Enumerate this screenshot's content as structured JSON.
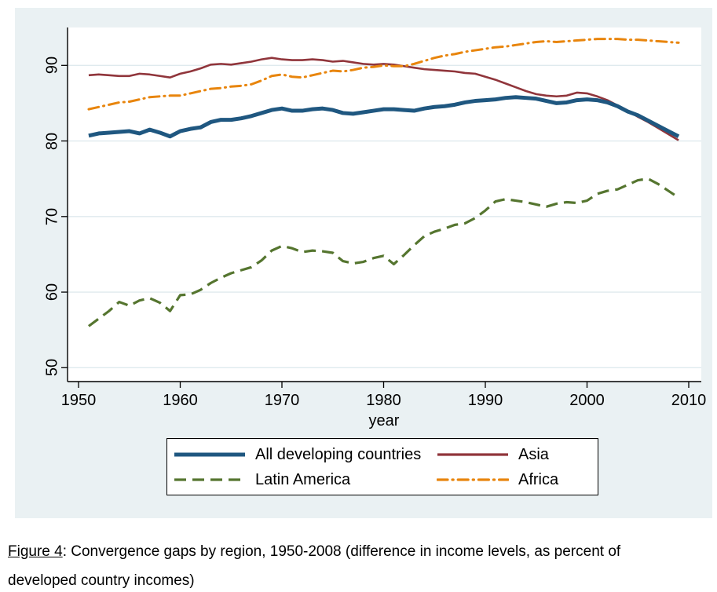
{
  "figure": {
    "caption_prefix": "Figure 4",
    "caption_rest": ": Convergence gaps by region, 1950-2008 (difference in income levels, as percent of developed country incomes)"
  },
  "chart_data": {
    "type": "line",
    "title": "",
    "xlabel": "year",
    "ylabel": "",
    "x_ticks": [
      1950,
      1960,
      1970,
      1980,
      1990,
      2000,
      2010
    ],
    "y_ticks": [
      50,
      60,
      70,
      80,
      90
    ],
    "xlim": [
      1948.9,
      2011.2
    ],
    "ylim": [
      48.2,
      95.0
    ],
    "grid": true,
    "legend_position": "bottom",
    "background": "#eaf1f3",
    "plot_background": "#ffffff",
    "gridline_color": "#dfeaee",
    "axis_color": "#000000",
    "years": [
      1951,
      1952,
      1953,
      1954,
      1955,
      1956,
      1957,
      1958,
      1959,
      1960,
      1961,
      1962,
      1963,
      1964,
      1965,
      1966,
      1967,
      1968,
      1969,
      1970,
      1971,
      1972,
      1973,
      1974,
      1975,
      1976,
      1977,
      1978,
      1979,
      1980,
      1981,
      1982,
      1983,
      1984,
      1985,
      1986,
      1987,
      1988,
      1989,
      1990,
      1991,
      1992,
      1993,
      1994,
      1995,
      1996,
      1997,
      1998,
      1999,
      2000,
      2001,
      2002,
      2003,
      2004,
      2005,
      2006,
      2007,
      2008,
      2009
    ],
    "series": [
      {
        "name": "All developing countries",
        "color": "#1f5780",
        "style": "solid",
        "width": 5,
        "values": [
          80.7,
          81.0,
          81.1,
          81.2,
          81.3,
          81.0,
          81.5,
          81.1,
          80.6,
          81.3,
          81.6,
          81.8,
          82.5,
          82.8,
          82.8,
          83.0,
          83.3,
          83.7,
          84.1,
          84.3,
          84.0,
          84.0,
          84.2,
          84.3,
          84.1,
          83.7,
          83.6,
          83.8,
          84.0,
          84.2,
          84.2,
          84.1,
          84.0,
          84.3,
          84.5,
          84.6,
          84.8,
          85.1,
          85.3,
          85.4,
          85.5,
          85.7,
          85.8,
          85.7,
          85.6,
          85.3,
          85.0,
          85.1,
          85.4,
          85.5,
          85.4,
          85.1,
          84.6,
          83.9,
          83.4,
          82.7,
          82.0,
          81.3,
          80.6
        ]
      },
      {
        "name": "Asia",
        "color": "#90353b",
        "style": "solid",
        "width": 2.6,
        "values": [
          88.7,
          88.8,
          88.7,
          88.6,
          88.6,
          88.9,
          88.8,
          88.6,
          88.4,
          88.9,
          89.2,
          89.6,
          90.1,
          90.2,
          90.1,
          90.3,
          90.5,
          90.8,
          91.0,
          90.8,
          90.7,
          90.7,
          90.8,
          90.7,
          90.5,
          90.6,
          90.4,
          90.2,
          90.1,
          90.2,
          90.1,
          89.9,
          89.7,
          89.5,
          89.4,
          89.3,
          89.2,
          89.0,
          88.9,
          88.5,
          88.1,
          87.6,
          87.1,
          86.6,
          86.2,
          86.0,
          85.9,
          86.0,
          86.4,
          86.3,
          85.9,
          85.4,
          84.7,
          84.0,
          83.2,
          82.5,
          81.7,
          80.9,
          80.1
        ]
      },
      {
        "name": "Latin America",
        "color": "#55752f",
        "style": "dash",
        "width": 3.2,
        "values": [
          55.5,
          56.5,
          57.5,
          58.7,
          58.2,
          58.9,
          59.2,
          58.6,
          57.5,
          59.6,
          59.7,
          60.3,
          61.2,
          61.9,
          62.5,
          62.9,
          63.3,
          64.2,
          65.5,
          66.1,
          65.8,
          65.3,
          65.5,
          65.4,
          65.2,
          64.1,
          63.8,
          64.0,
          64.5,
          64.8,
          63.7,
          64.9,
          66.2,
          67.4,
          68.0,
          68.4,
          68.9,
          69.1,
          69.8,
          70.8,
          72.0,
          72.3,
          72.1,
          71.9,
          71.6,
          71.3,
          71.7,
          71.9,
          71.8,
          72.1,
          73.0,
          73.4,
          73.6,
          74.2,
          74.8,
          75.0,
          74.3,
          73.4,
          72.5
        ]
      },
      {
        "name": "Africa",
        "color": "#e8850d",
        "style": "dashdot",
        "width": 3,
        "values": [
          84.2,
          84.5,
          84.8,
          85.1,
          85.2,
          85.5,
          85.8,
          85.9,
          86.0,
          86.0,
          86.3,
          86.6,
          86.9,
          87.0,
          87.2,
          87.3,
          87.5,
          88.0,
          88.6,
          88.8,
          88.5,
          88.4,
          88.7,
          89.0,
          89.3,
          89.2,
          89.4,
          89.7,
          89.8,
          90.0,
          89.9,
          89.9,
          90.2,
          90.6,
          91.0,
          91.3,
          91.5,
          91.8,
          92.0,
          92.2,
          92.4,
          92.5,
          92.7,
          92.9,
          93.1,
          93.2,
          93.1,
          93.2,
          93.3,
          93.4,
          93.5,
          93.5,
          93.5,
          93.4,
          93.4,
          93.3,
          93.2,
          93.1,
          93.0
        ]
      }
    ]
  }
}
